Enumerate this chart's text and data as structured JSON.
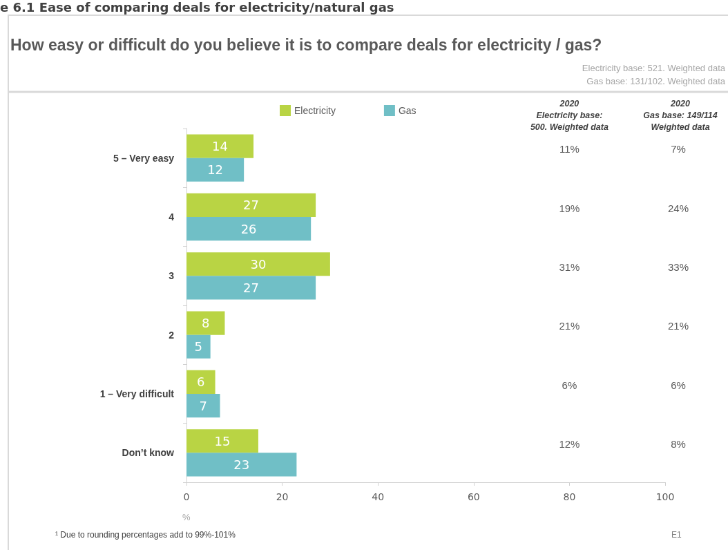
{
  "chart_data": {
    "type": "bar",
    "orientation": "horizontal",
    "title": "How easy or difficult do you believe it is to compare deals for electricity / gas?",
    "xlabel": "%",
    "categories": [
      "5 – Very easy",
      "4",
      "3",
      "2",
      "1 – Very difficult",
      "Don’t know"
    ],
    "series": [
      {
        "name": "Electricity",
        "color": "#b9d444",
        "values": [
          14,
          27,
          30,
          8,
          6,
          15
        ]
      },
      {
        "name": "Gas",
        "color": "#70bfc6",
        "values": [
          12,
          26,
          27,
          5,
          7,
          23
        ]
      }
    ],
    "xlim": [
      0,
      100
    ],
    "xticks": [
      0,
      20,
      40,
      60,
      80,
      100
    ],
    "grid": false,
    "legend": "top",
    "data_labels": true,
    "annotations": [
      "e 6.1 Ease of comparing deals for electricity/natural gas",
      "Electricity base: 521. Weighted data",
      "Gas base: 131/102. Weighted data",
      "2020\nElectricity base:\n500. Weighted data",
      "2020\nGas base: 149/114\nWeighted data",
      "11%",
      "7%",
      "19%",
      "24%",
      "31%",
      "33%",
      "21%",
      "21%",
      "6%",
      "6%",
      "12%",
      "8%",
      "¹ Due to rounding percentages add to 99%-101%",
      "E1"
    ]
  }
}
